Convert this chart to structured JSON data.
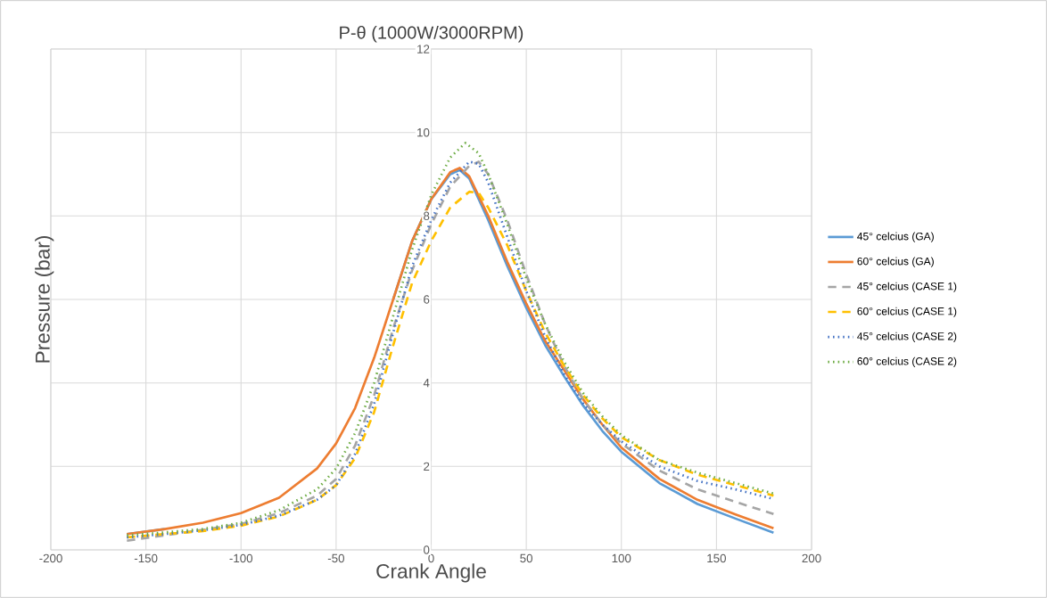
{
  "chart_data": {
    "type": "line",
    "title": "P-θ (1000W/3000RPM)",
    "xlabel": "Crank Angle",
    "ylabel": "Pressure (bar)",
    "xlim": [
      -200,
      200
    ],
    "xticks": [
      -200,
      -150,
      -100,
      -50,
      0,
      50,
      100,
      150,
      200
    ],
    "ylim": [
      0,
      12
    ],
    "yticks": [
      0,
      2,
      4,
      6,
      8,
      10,
      12
    ],
    "grid": true,
    "legend": "right",
    "marker": "none",
    "series": [
      {
        "name": "45° celcius (GA)",
        "color": "#5b9bd5",
        "line_style": "solid",
        "x": [
          -160,
          -140,
          -120,
          -100,
          -80,
          -60,
          -50,
          -40,
          -30,
          -20,
          -10,
          0,
          10,
          15,
          20,
          30,
          40,
          50,
          60,
          70,
          80,
          90,
          100,
          120,
          140,
          160,
          180
        ],
        "values": [
          0.38,
          0.5,
          null,
          null,
          null,
          null,
          null,
          null,
          null,
          6.0,
          7.4,
          8.4,
          9.0,
          9.1,
          8.9,
          7.9,
          6.8,
          5.8,
          4.9,
          4.15,
          3.45,
          2.85,
          2.35,
          1.6,
          1.1,
          0.75,
          0.41
        ]
      },
      {
        "name": "60° celcius (GA)",
        "color": "#ed7d31",
        "line_style": "solid",
        "x": [
          -160,
          -140,
          -120,
          -100,
          -80,
          -60,
          -50,
          -40,
          -30,
          -20,
          -10,
          0,
          10,
          15,
          20,
          30,
          40,
          50,
          60,
          70,
          80,
          90,
          100,
          120,
          140,
          160,
          180
        ],
        "values": [
          0.38,
          0.5,
          0.65,
          0.88,
          1.25,
          1.95,
          2.55,
          3.4,
          4.6,
          6.0,
          7.4,
          8.4,
          9.05,
          9.15,
          8.95,
          8.0,
          6.9,
          5.9,
          5.0,
          4.3,
          3.6,
          3.0,
          2.45,
          1.7,
          1.2,
          0.85,
          0.52
        ]
      },
      {
        "name": "45° celcius (CASE 1)",
        "color": "#a5a5a5",
        "line_style": "dashed",
        "x": [
          -160,
          -140,
          -120,
          -100,
          -80,
          -60,
          -50,
          -40,
          -30,
          -20,
          -10,
          0,
          10,
          20,
          25,
          30,
          40,
          50,
          60,
          70,
          80,
          90,
          100,
          120,
          140,
          160,
          180
        ],
        "values": [
          0.22,
          0.35,
          0.48,
          0.62,
          0.88,
          1.3,
          1.7,
          2.5,
          3.7,
          5.3,
          6.7,
          7.8,
          8.7,
          9.2,
          9.3,
          9.0,
          7.9,
          6.6,
          5.4,
          4.4,
          3.6,
          3.0,
          2.55,
          1.9,
          1.45,
          1.15,
          0.86
        ]
      },
      {
        "name": "60° celcius (CASE 1)",
        "color": "#ffc000",
        "line_style": "dashed",
        "x": [
          -160,
          -140,
          -120,
          -100,
          -80,
          -60,
          -50,
          -40,
          -30,
          -20,
          -10,
          0,
          10,
          20,
          25,
          30,
          40,
          50,
          60,
          70,
          80,
          90,
          100,
          120,
          140,
          160,
          180
        ],
        "values": [
          0.3,
          0.38,
          0.45,
          0.58,
          0.8,
          1.2,
          1.55,
          2.2,
          3.3,
          4.9,
          6.4,
          7.4,
          8.2,
          8.58,
          8.55,
          8.2,
          7.3,
          6.2,
          5.2,
          4.4,
          3.7,
          3.15,
          2.7,
          2.15,
          1.8,
          1.55,
          1.3
        ]
      },
      {
        "name": "45° celcius (CASE 2)",
        "color": "#4472c4",
        "line_style": "dotted",
        "x": [
          -160,
          -140,
          -120,
          -100,
          -80,
          -60,
          -50,
          -40,
          -30,
          -20,
          -10,
          0,
          10,
          20,
          25,
          30,
          40,
          50,
          60,
          70,
          80,
          90,
          100,
          120,
          140,
          160,
          180
        ],
        "values": [
          0.3,
          0.38,
          0.47,
          0.6,
          0.82,
          1.2,
          1.55,
          2.3,
          3.5,
          5.2,
          6.8,
          7.9,
          8.8,
          9.3,
          9.25,
          8.8,
          7.5,
          6.2,
          5.1,
          4.2,
          3.5,
          3.0,
          2.6,
          2.0,
          1.65,
          1.45,
          1.22
        ]
      },
      {
        "name": "60° celcius (CASE 2)",
        "color": "#70ad47",
        "line_style": "dotted",
        "x": [
          -160,
          -140,
          -120,
          -100,
          -80,
          -60,
          -50,
          -40,
          -30,
          -20,
          -10,
          0,
          10,
          18,
          25,
          30,
          40,
          50,
          60,
          70,
          80,
          90,
          100,
          120,
          140,
          160,
          180
        ],
        "values": [
          0.35,
          0.42,
          0.5,
          0.65,
          0.95,
          1.45,
          1.95,
          2.8,
          4.0,
          5.6,
          7.2,
          8.5,
          9.4,
          9.75,
          9.5,
          9.0,
          7.8,
          6.5,
          5.4,
          4.5,
          3.75,
          3.2,
          2.75,
          2.15,
          1.85,
          1.6,
          1.35
        ]
      }
    ]
  }
}
